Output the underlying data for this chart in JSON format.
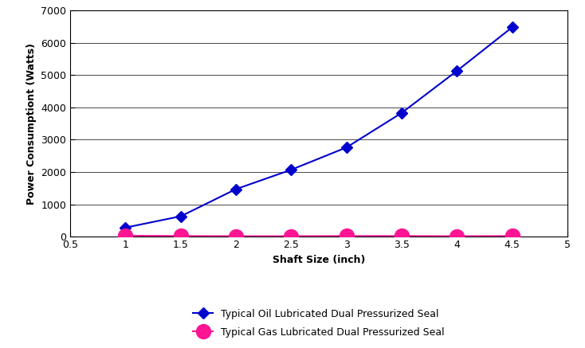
{
  "oil_x": [
    1,
    1.5,
    2,
    2.5,
    3,
    3.5,
    4,
    4.5
  ],
  "oil_y": [
    280,
    630,
    1470,
    2070,
    2760,
    3830,
    5130,
    6480
  ],
  "gas_x": [
    1,
    1.5,
    2,
    2.5,
    3,
    3.5,
    4,
    4.5
  ],
  "gas_y": [
    30,
    20,
    15,
    15,
    20,
    20,
    15,
    20
  ],
  "oil_color": "#0000CD",
  "gas_color": "#FF1493",
  "oil_label": "Typical Oil Lubricated Dual Pressurized Seal",
  "gas_label": "Typical Gas Lubricated Dual Pressurized Seal",
  "xlabel": "Shaft Size (inch)",
  "ylabel": "Power Consumptiont (Watts)",
  "xlim": [
    0.5,
    5
  ],
  "ylim": [
    0,
    7000
  ],
  "yticks": [
    0,
    1000,
    2000,
    3000,
    4000,
    5000,
    6000,
    7000
  ],
  "xticks": [
    0.5,
    1,
    1.5,
    2,
    2.5,
    3,
    3.5,
    4,
    4.5,
    5
  ],
  "background_color": "#ffffff",
  "grid_color": "#000000",
  "oil_marker": "D",
  "gas_marker": "o",
  "oil_markersize": 7,
  "gas_markersize": 13,
  "linewidth": 1.5,
  "label_fontsize": 9,
  "axis_label_fontsize": 9,
  "tick_label_fontsize": 9
}
